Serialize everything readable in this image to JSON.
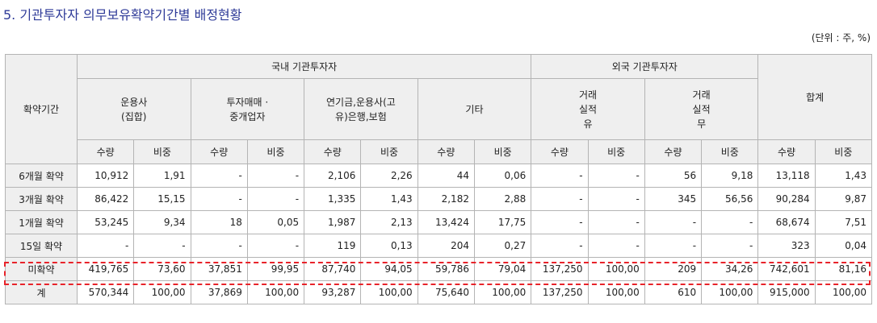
{
  "title": "5. 기관투자자 의무보유확약기간별 배정현황",
  "unit": "(단위 : 주, %)",
  "header": {
    "period": "확약기간",
    "domestic": "국내 기관투자자",
    "foreign": "외국 기관투자자",
    "total": "합계",
    "groups": [
      {
        "line1": "운용사",
        "line2": "(집합)"
      },
      {
        "line1": "투자매매 ·",
        "line2": "중개업자"
      },
      {
        "line1": "연기금,운용사(고",
        "line2": "유)은행,보험"
      },
      {
        "line1": "기타"
      },
      {
        "line1": "거래",
        "line2": "실적",
        "line3": "유"
      },
      {
        "line1": "거래",
        "line2": "실적",
        "line3": "무"
      }
    ],
    "qty": "수량",
    "ratio": "비중"
  },
  "rows": [
    {
      "label": "6개월 확약",
      "v": [
        "10,912",
        "1,91",
        "-",
        "-",
        "2,106",
        "2,26",
        "44",
        "0,06",
        "-",
        "-",
        "56",
        "9,18",
        "13,118",
        "1,43"
      ]
    },
    {
      "label": "3개월 확약",
      "v": [
        "86,422",
        "15,15",
        "-",
        "-",
        "1,335",
        "1,43",
        "2,182",
        "2,88",
        "-",
        "-",
        "345",
        "56,56",
        "90,284",
        "9,87"
      ]
    },
    {
      "label": "1개월 확약",
      "v": [
        "53,245",
        "9,34",
        "18",
        "0,05",
        "1,987",
        "2,13",
        "13,424",
        "17,75",
        "-",
        "-",
        "-",
        "-",
        "68,674",
        "7,51"
      ]
    },
    {
      "label": "15일 확약",
      "v": [
        "-",
        "-",
        "-",
        "-",
        "119",
        "0,13",
        "204",
        "0,27",
        "-",
        "-",
        "-",
        "-",
        "323",
        "0,04"
      ]
    },
    {
      "label": "미확약",
      "v": [
        "419,765",
        "73,60",
        "37,851",
        "99,95",
        "87,740",
        "94,05",
        "59,786",
        "79,04",
        "137,250",
        "100,00",
        "209",
        "34,26",
        "742,601",
        "81,16"
      ]
    },
    {
      "label": "계",
      "v": [
        "570,344",
        "100,00",
        "37,869",
        "100,00",
        "93,287",
        "100,00",
        "75,640",
        "100,00",
        "137,250",
        "100,00",
        "610",
        "100,00",
        "915,000",
        "100,00"
      ]
    }
  ],
  "colors": {
    "title": "#2e3a98",
    "header_bg": "#efefef",
    "border": "#b4b4b4",
    "highlight": "#e8232a"
  }
}
